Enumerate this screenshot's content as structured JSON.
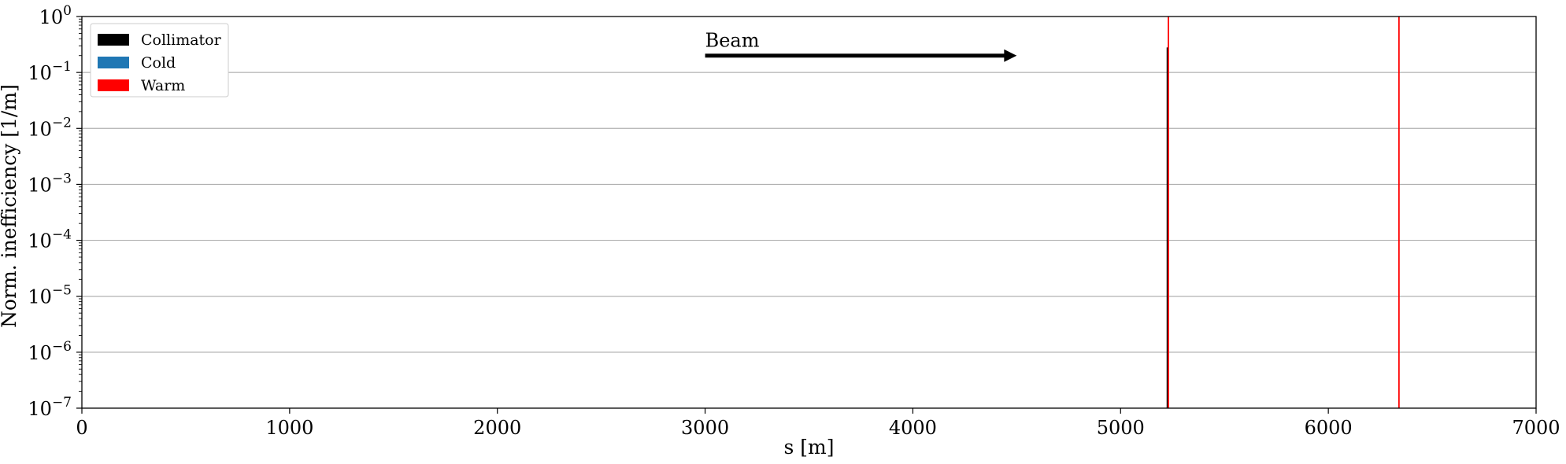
{
  "chart_data": {
    "type": "bar",
    "xlabel": "s [m]",
    "ylabel": "Norm. inefficiency [1/m]",
    "xlim": [
      0,
      7000
    ],
    "ylim": [
      1e-07,
      1
    ],
    "yscale": "log",
    "grid": "horizontal",
    "legend_position": "top-left",
    "x_ticks": [
      "0",
      "1000",
      "2000",
      "3000",
      "4000",
      "5000",
      "6000",
      "7000"
    ],
    "y_tick_exponents": [
      "0",
      "-1",
      "-2",
      "-3",
      "-4",
      "-5",
      "-6",
      "-7"
    ],
    "legend": [
      {
        "name": "Collimator",
        "color": "#000000"
      },
      {
        "name": "Cold",
        "color": "#1f77b4"
      },
      {
        "name": "Warm",
        "color": "#ff0000"
      }
    ],
    "series": [
      {
        "name": "Collimator",
        "color": "#000000",
        "points": [
          {
            "x": 5225,
            "y": 0.28
          }
        ]
      },
      {
        "name": "Cold",
        "color": "#1f77b4",
        "points": []
      },
      {
        "name": "Warm",
        "color": "#ff0000",
        "points": [
          {
            "x": 5230,
            "y": 1.0
          },
          {
            "x": 6340,
            "y": 1.0
          }
        ]
      }
    ],
    "annotation": {
      "text": "Beam",
      "x_start": 3000,
      "x_end": 4500,
      "y": 0.2
    }
  }
}
